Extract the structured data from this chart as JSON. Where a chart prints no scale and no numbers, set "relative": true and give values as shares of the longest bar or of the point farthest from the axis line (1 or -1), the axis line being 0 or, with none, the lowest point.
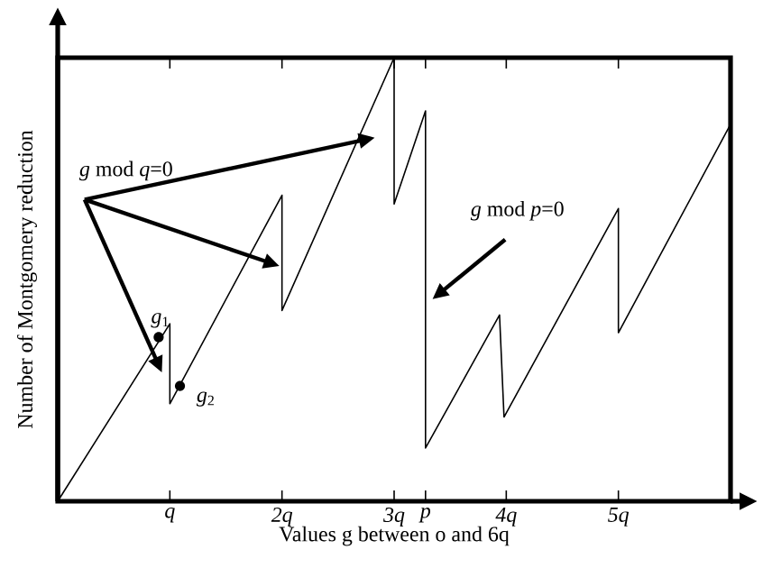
{
  "chart_data": {
    "type": "line",
    "xlabel": "Values g between o and 6q",
    "ylabel": "Number of Montgomery reduction",
    "relative": true,
    "color": "#000000",
    "marker": "none",
    "line_style": "solid",
    "grid": false,
    "x": [
      0,
      1,
      1,
      2,
      2,
      3,
      3,
      3.28,
      3.28,
      3.94,
      3.98,
      5,
      5,
      6
    ],
    "values": [
      0,
      0.4,
      0.22,
      0.69,
      0.43,
      1,
      0.67,
      0.88,
      0.12,
      0.42,
      0.19,
      0.66,
      0.38,
      0.85
    ],
    "xlim": [
      0,
      6
    ],
    "xticks": [
      {
        "value": 1,
        "label": "q"
      },
      {
        "value": 2,
        "label": "2q"
      },
      {
        "value": 3,
        "label": "3q"
      },
      {
        "value": 3.28,
        "label": "p"
      },
      {
        "value": 4,
        "label": "4q"
      },
      {
        "value": 5,
        "label": "5q"
      }
    ],
    "annotations": [
      {
        "text": "*g* mod *q*=0"
      },
      "*g* mod *p*=0",
      {
        "text": "*g*$_{1}$",
        "x": 0.9,
        "y": 0.37
      },
      {
        "text": "*g*$_{2}$",
        "x": 1.09,
        "y": 0.26
      }
    ]
  }
}
